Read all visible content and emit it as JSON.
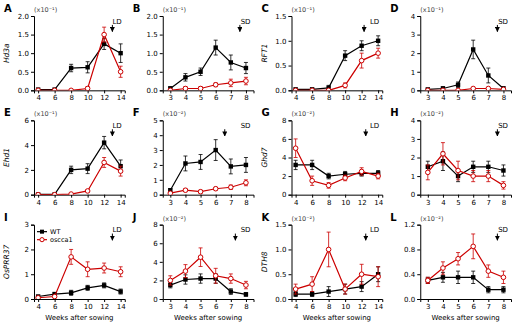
{
  "chart_data": [
    {
      "type": "line",
      "title": "A",
      "subtitle": "LD",
      "ylabel": "Hd3a",
      "x": [
        4,
        6,
        8,
        10,
        12,
        14
      ],
      "xlim": [
        3.5,
        14.5
      ],
      "xticks": [
        4,
        6,
        8,
        10,
        12,
        14
      ],
      "ylim": [
        0,
        2.0
      ],
      "yticks": [
        {
          "value": 0,
          "label": "0.0"
        },
        0.5,
        {
          "value": 1.0,
          "label": "1.0"
        },
        1.5,
        {
          "value": 2.0,
          "label": "2.0"
        }
      ],
      "annotations": [
        {
          "text": "(x10⁻¹)"
        },
        {
          "x": 13.0,
          "y": 1.76,
          "y_end": 1.58
        }
      ],
      "series": [
        {
          "color": "#000000",
          "marker": "square",
          "values": [
            0.02,
            0.02,
            0.6,
            0.62,
            1.25,
            1.0
          ],
          "errors": [
            0.02,
            0.02,
            0.1,
            0.15,
            0.15,
            0.25
          ]
        },
        {
          "color": "#cc0000",
          "marker": "circle-open",
          "values": [
            0.0,
            0.0,
            0.0,
            0.05,
            1.5,
            0.5
          ],
          "errors": [
            0.0,
            0.0,
            0.0,
            0.05,
            0.2,
            0.15
          ]
        }
      ]
    },
    {
      "type": "line",
      "title": "B",
      "subtitle": "SD",
      "x": [
        3,
        4,
        5,
        6,
        7,
        8
      ],
      "xlim": [
        2.5,
        8.5
      ],
      "xticks": [
        3,
        4,
        5,
        6,
        7,
        8
      ],
      "ylim": [
        0,
        2.0
      ],
      "yticks": [
        {
          "value": 0,
          "label": "0.0"
        },
        0.5,
        {
          "value": 1.0,
          "label": "1.0"
        },
        1.5,
        {
          "value": 2.0,
          "label": "2.0"
        }
      ],
      "annotations": [
        {
          "text": "(x10⁻¹)"
        },
        {
          "x": 7.6,
          "y": 1.76,
          "y_end": 1.58
        }
      ],
      "series": [
        {
          "color": "#000000",
          "marker": "square",
          "values": [
            0.05,
            0.35,
            0.5,
            1.15,
            0.75,
            0.6
          ],
          "errors": [
            0.05,
            0.1,
            0.1,
            0.2,
            0.2,
            0.15
          ]
        },
        {
          "color": "#cc0000",
          "marker": "circle-open",
          "values": [
            0.0,
            0.05,
            0.05,
            0.15,
            0.2,
            0.25
          ],
          "errors": [
            0.0,
            0.05,
            0.05,
            0.05,
            0.1,
            0.1
          ]
        }
      ]
    },
    {
      "type": "line",
      "title": "C",
      "subtitle": "LD",
      "ylabel": "RFT1",
      "x": [
        4,
        6,
        8,
        10,
        12,
        14
      ],
      "xlim": [
        3.5,
        14.5
      ],
      "xticks": [
        4,
        6,
        8,
        10,
        12,
        14
      ],
      "ylim": [
        0,
        1.5
      ],
      "yticks": [
        {
          "value": 0,
          "label": "0.0"
        },
        0.5,
        {
          "value": 1.0,
          "label": "1.0"
        },
        1.5
      ],
      "annotations": [
        {
          "text": "(x10⁻¹)"
        },
        {
          "x": 12.3,
          "y": 1.32,
          "y_end": 1.185
        }
      ],
      "series": [
        {
          "color": "#000000",
          "marker": "square",
          "values": [
            0.02,
            0.02,
            0.05,
            0.7,
            0.9,
            1.0
          ],
          "errors": [
            0.02,
            0.02,
            0.05,
            0.1,
            0.1,
            0.1
          ]
        },
        {
          "color": "#cc0000",
          "marker": "circle-open",
          "values": [
            0.0,
            0.0,
            0.0,
            0.1,
            0.6,
            0.75
          ],
          "errors": [
            0.0,
            0.0,
            0.0,
            0.05,
            0.15,
            0.1
          ]
        }
      ]
    },
    {
      "type": "line",
      "title": "D",
      "subtitle": "SD",
      "x": [
        3,
        4,
        5,
        6,
        7,
        8
      ],
      "xlim": [
        2.5,
        8.5
      ],
      "xticks": [
        3,
        4,
        5,
        6,
        7,
        8
      ],
      "ylim": [
        0,
        4.0
      ],
      "yticks": [
        0,
        1,
        2,
        3,
        4
      ],
      "annotations": [
        {
          "text": "(x10⁻¹)"
        },
        {
          "x": 7.6,
          "y": 3.52,
          "y_end": 3.16
        }
      ],
      "series": [
        {
          "color": "#000000",
          "marker": "square",
          "values": [
            0.05,
            0.1,
            0.3,
            2.2,
            0.8,
            0.1
          ],
          "errors": [
            0.05,
            0.1,
            0.15,
            0.5,
            0.4,
            0.1
          ]
        },
        {
          "color": "#cc0000",
          "marker": "circle-open",
          "values": [
            0.0,
            0.0,
            0.0,
            0.1,
            0.1,
            0.05
          ],
          "errors": [
            0.0,
            0.0,
            0.0,
            0.05,
            0.05,
            0.02
          ]
        }
      ]
    },
    {
      "type": "line",
      "title": "E",
      "subtitle": "LD",
      "ylabel": "Ehd1",
      "x": [
        4,
        6,
        8,
        10,
        12,
        14
      ],
      "xlim": [
        3.5,
        14.5
      ],
      "xticks": [
        4,
        6,
        8,
        10,
        12,
        14
      ],
      "ylim": [
        0,
        6.0
      ],
      "yticks": [
        0,
        2,
        4,
        6
      ],
      "annotations": [
        {
          "text": "(x10⁻¹)"
        },
        {
          "x": 13.0,
          "y": 5.28,
          "y_end": 4.74
        }
      ],
      "series": [
        {
          "color": "#000000",
          "marker": "square",
          "values": [
            0.02,
            0.02,
            2.0,
            2.1,
            4.2,
            2.3
          ],
          "errors": [
            0.02,
            0.02,
            0.3,
            0.4,
            0.5,
            0.5
          ]
        },
        {
          "color": "#cc0000",
          "marker": "circle-open",
          "values": [
            0.0,
            0.0,
            0.05,
            0.3,
            2.6,
            1.9
          ],
          "errors": [
            0.0,
            0.0,
            0.02,
            0.1,
            0.4,
            0.4
          ]
        }
      ]
    },
    {
      "type": "line",
      "title": "F",
      "subtitle": "SD",
      "x": [
        3,
        4,
        5,
        6,
        7,
        8
      ],
      "xlim": [
        2.5,
        8.5
      ],
      "xticks": [
        3,
        4,
        5,
        6,
        7,
        8
      ],
      "ylim": [
        0,
        5.0
      ],
      "yticks": [
        0,
        1,
        2,
        3,
        4,
        5
      ],
      "annotations": [
        {
          "text": "(x10⁻²)"
        },
        {
          "x": 6.6,
          "y": 4.4,
          "y_end": 3.95
        }
      ],
      "series": [
        {
          "color": "#000000",
          "marker": "square",
          "values": [
            0.3,
            2.1,
            2.2,
            3.0,
            1.9,
            2.0
          ],
          "errors": [
            0.1,
            0.5,
            0.5,
            0.7,
            0.5,
            0.5
          ]
        },
        {
          "color": "#cc0000",
          "marker": "circle-open",
          "values": [
            0.1,
            0.3,
            0.2,
            0.4,
            0.5,
            0.8
          ],
          "errors": [
            0.05,
            0.1,
            0.1,
            0.1,
            0.15,
            0.2
          ]
        }
      ]
    },
    {
      "type": "line",
      "title": "G",
      "subtitle": "LD",
      "ylabel": "Ghd7",
      "x": [
        4,
        6,
        8,
        10,
        12,
        14
      ],
      "xlim": [
        3.5,
        14.5
      ],
      "xticks": [
        4,
        6,
        8,
        10,
        12,
        14
      ],
      "ylim": [
        0,
        8.0
      ],
      "yticks": [
        0,
        2,
        4,
        6,
        8
      ],
      "annotations": [
        {
          "text": "(x10⁻²)"
        },
        {
          "x": 12.5,
          "y": 7.04,
          "y_end": 6.32
        }
      ],
      "series": [
        {
          "color": "#000000",
          "marker": "square",
          "values": [
            3.2,
            3.2,
            2.0,
            2.2,
            2.3,
            2.3
          ],
          "errors": [
            0.5,
            0.5,
            0.3,
            0.3,
            0.3,
            0.3
          ]
        },
        {
          "color": "#cc0000",
          "marker": "circle-open",
          "values": [
            5.0,
            1.5,
            1.0,
            1.8,
            2.5,
            2.0
          ],
          "errors": [
            1.0,
            0.5,
            0.3,
            0.3,
            0.4,
            0.3
          ]
        }
      ]
    },
    {
      "type": "line",
      "title": "H",
      "subtitle": "SD",
      "x": [
        3,
        4,
        5,
        6,
        7,
        8
      ],
      "xlim": [
        2.5,
        8.5
      ],
      "xticks": [
        3,
        4,
        5,
        6,
        7,
        8
      ],
      "ylim": [
        0,
        4.0
      ],
      "yticks": [
        0,
        1,
        2,
        3,
        4
      ],
      "annotations": [
        {
          "text": "(x10⁻²)"
        },
        {
          "x": 7.6,
          "y": 3.52,
          "y_end": 3.16
        }
      ],
      "series": [
        {
          "color": "#000000",
          "marker": "square",
          "values": [
            1.5,
            1.8,
            1.0,
            1.5,
            1.5,
            1.3
          ],
          "errors": [
            0.3,
            0.5,
            0.3,
            0.3,
            0.3,
            0.3
          ]
        },
        {
          "color": "#cc0000",
          "marker": "circle-open",
          "values": [
            1.2,
            2.2,
            1.3,
            1.0,
            1.0,
            0.5
          ],
          "errors": [
            0.4,
            0.6,
            0.5,
            0.3,
            0.3,
            0.2
          ]
        }
      ]
    },
    {
      "type": "line",
      "title": "I",
      "subtitle": "LD",
      "ylabel": "OsPRR37",
      "xlabel": "Weeks after sowing",
      "legend": "upper left",
      "x": [
        4,
        6,
        8,
        10,
        12,
        14
      ],
      "xlim": [
        3.5,
        14.5
      ],
      "xticks": [
        4,
        6,
        8,
        10,
        12,
        14
      ],
      "ylim": [
        0,
        3.0
      ],
      "yticks": [
        0,
        1,
        2,
        3
      ],
      "annotations": [
        {
          "x": 13.0,
          "y": 2.64,
          "y_end": 2.37
        }
      ],
      "series": [
        {
          "name": "WT",
          "color": "#000000",
          "marker": "square",
          "values": [
            0.1,
            0.2,
            0.25,
            0.45,
            0.55,
            0.3
          ],
          "errors": [
            0.05,
            0.05,
            0.1,
            0.1,
            0.1,
            0.1
          ]
        },
        {
          "name": "oscca1",
          "color": "#cc0000",
          "marker": "circle-open",
          "values": [
            0.05,
            0.1,
            1.7,
            1.2,
            1.25,
            1.1
          ],
          "errors": [
            0.02,
            0.05,
            0.3,
            0.3,
            0.2,
            0.2
          ]
        }
      ]
    },
    {
      "type": "line",
      "title": "J",
      "subtitle": "SD",
      "xlabel": "Weeks after sowing",
      "x": [
        3,
        4,
        5,
        6,
        7,
        8
      ],
      "xlim": [
        2.5,
        8.5
      ],
      "xticks": [
        3,
        4,
        5,
        6,
        7,
        8
      ],
      "ylim": [
        0,
        8.0
      ],
      "yticks": [
        0,
        2,
        4,
        6,
        8
      ],
      "annotations": [
        {
          "text": "(x10⁻²)"
        },
        {
          "x": 7.3,
          "y": 7.04,
          "y_end": 6.32
        }
      ],
      "series": [
        {
          "color": "#000000",
          "marker": "square",
          "values": [
            1.5,
            2.1,
            2.2,
            2.2,
            0.8,
            0.5
          ],
          "errors": [
            0.3,
            0.5,
            0.5,
            0.5,
            0.3,
            0.2
          ]
        },
        {
          "color": "#cc0000",
          "marker": "circle-open",
          "values": [
            2.0,
            3.0,
            4.5,
            2.5,
            2.2,
            1.5
          ],
          "errors": [
            0.5,
            0.7,
            1.0,
            0.8,
            0.5,
            0.4
          ]
        }
      ]
    },
    {
      "type": "line",
      "title": "K",
      "subtitle": "LD",
      "ylabel": "DTH8",
      "xlabel": "Weeks after sowing",
      "x": [
        4,
        6,
        8,
        10,
        12,
        14
      ],
      "xlim": [
        3.5,
        14.5
      ],
      "xticks": [
        4,
        6,
        8,
        10,
        12,
        14
      ],
      "ylim": [
        0,
        1.5
      ],
      "yticks": [
        {
          "value": 0,
          "label": "0.0"
        },
        0.5,
        {
          "value": 1.0,
          "label": "1.0"
        },
        1.5
      ],
      "annotations": [
        {
          "text": "(x10⁻²)"
        },
        {
          "x": 12.5,
          "y": 1.32,
          "y_end": 1.185
        }
      ],
      "series": [
        {
          "color": "#000000",
          "marker": "square",
          "values": [
            0.1,
            0.1,
            0.15,
            0.2,
            0.25,
            0.5
          ],
          "errors": [
            0.05,
            0.05,
            0.1,
            0.1,
            0.1,
            0.15
          ]
        },
        {
          "color": "#cc0000",
          "marker": "circle-open",
          "values": [
            0.2,
            0.3,
            1.0,
            0.2,
            0.5,
            0.45
          ],
          "errors": [
            0.1,
            0.15,
            0.35,
            0.1,
            0.2,
            0.2
          ]
        }
      ]
    },
    {
      "type": "line",
      "title": "L",
      "subtitle": "SD",
      "xlabel": "Weeks after sowing",
      "x": [
        3,
        4,
        5,
        6,
        7,
        8
      ],
      "xlim": [
        2.5,
        8.5
      ],
      "xticks": [
        3,
        4,
        5,
        6,
        7,
        8
      ],
      "ylim": [
        0,
        1.2
      ],
      "yticks": [
        {
          "value": 0,
          "label": "0.0"
        },
        0.4,
        0.8,
        1.2
      ],
      "annotations": [
        {
          "text": "(x10⁻²)"
        },
        {
          "x": 7.6,
          "y": 1.056,
          "y_end": 0.948
        }
      ],
      "series": [
        {
          "color": "#000000",
          "marker": "square",
          "values": [
            0.3,
            0.35,
            0.35,
            0.35,
            0.15,
            0.15
          ],
          "errors": [
            0.05,
            0.08,
            0.1,
            0.1,
            0.05,
            0.05
          ]
        },
        {
          "color": "#cc0000",
          "marker": "circle-open",
          "values": [
            0.3,
            0.5,
            0.65,
            0.85,
            0.45,
            0.35
          ],
          "errors": [
            0.05,
            0.1,
            0.1,
            0.2,
            0.1,
            0.1
          ]
        }
      ]
    }
  ]
}
